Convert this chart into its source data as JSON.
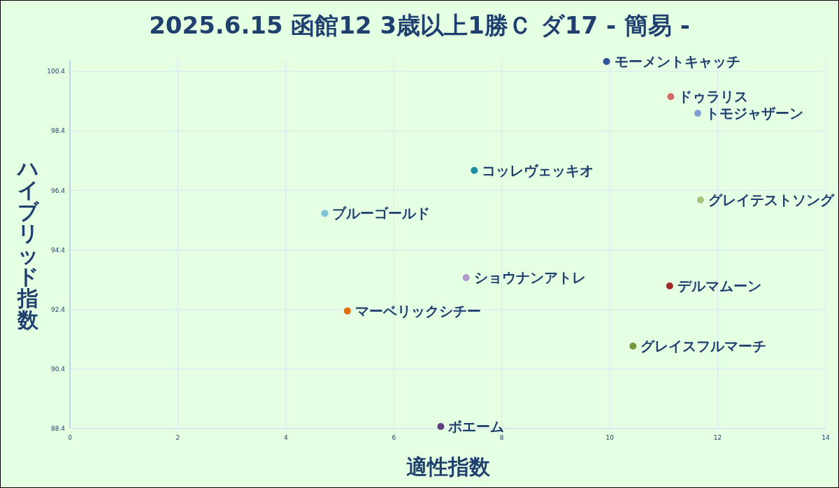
{
  "chart_data": {
    "type": "scatter",
    "title": "2025.6.15 函館12 3歳以上1勝Ｃ ダ17 - 簡易 -",
    "xlabel": "適性指数",
    "ylabel": "ハイブリッド指数",
    "xlim": [
      0,
      14
    ],
    "xticks": [
      0,
      2,
      4,
      6,
      8,
      10,
      12,
      14
    ],
    "ylim": [
      88.4,
      100.8
    ],
    "yticks": [
      88.4,
      90.4,
      92.4,
      94.4,
      96.4,
      98.4,
      100.4
    ],
    "grid": true,
    "marker": "circle",
    "series": [
      {
        "name": "モーメントキャッチ",
        "color": "#2f5597",
        "x": [
          9.94
        ],
        "values": [
          100.73
        ]
      },
      {
        "name": "ドゥラリス",
        "color": "#d46a6a",
        "x": [
          11.13
        ],
        "values": [
          99.55
        ]
      },
      {
        "name": "トモジャザーン",
        "color": "#7f9fd4",
        "x": [
          11.63
        ],
        "values": [
          98.99
        ]
      },
      {
        "name": "コッレヴェッキオ",
        "color": "#1f8aa0",
        "x": [
          7.49
        ],
        "values": [
          97.07
        ]
      },
      {
        "name": "グレイテストソング",
        "color": "#a9c47f",
        "x": [
          11.68
        ],
        "values": [
          96.08
        ]
      },
      {
        "name": "ブルーゴールド",
        "color": "#7fc4d9",
        "x": [
          4.72
        ],
        "values": [
          95.63
        ]
      },
      {
        "name": "ショウナンアトレ",
        "color": "#b09ac8",
        "x": [
          7.34
        ],
        "values": [
          93.47
        ]
      },
      {
        "name": "デルマムーン",
        "color": "#a52a2a",
        "x": [
          11.11
        ],
        "values": [
          93.19
        ]
      },
      {
        "name": "マーベリックシチー",
        "color": "#e36c0a",
        "x": [
          5.14
        ],
        "values": [
          92.35
        ]
      },
      {
        "name": "グレイスフルマーチ",
        "color": "#77933c",
        "x": [
          10.43
        ],
        "values": [
          91.17
        ]
      },
      {
        "name": "ボエーム",
        "color": "#5f3f7f",
        "x": [
          6.87
        ],
        "values": [
          88.47
        ]
      }
    ]
  }
}
